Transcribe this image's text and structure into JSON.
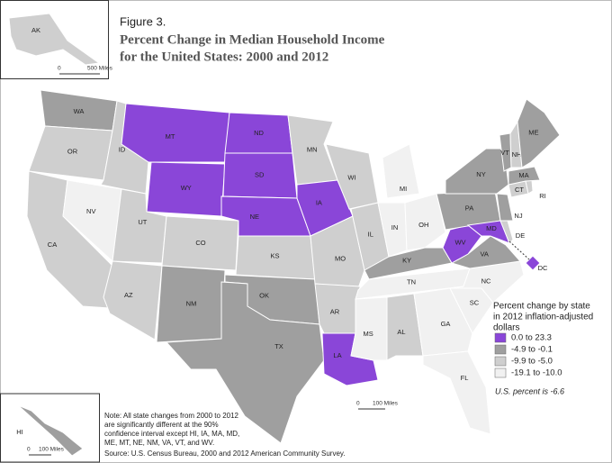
{
  "figure_label": "Figure 3.",
  "title_lines": [
    "Percent Change in Median Household Income",
    "for the United States: 2000 and 2012"
  ],
  "legend": {
    "title_lines": [
      "Percent change by state",
      "in 2012 inflation-adjusted",
      "dollars"
    ],
    "items": [
      {
        "label": "0.0 to 23.3",
        "color": "#8a46d8"
      },
      {
        "label": "-4.9 to -0.1",
        "color": "#9f9f9f"
      },
      {
        "label": "-9.9 to -5.0",
        "color": "#cfcfcf"
      },
      {
        "label": "-19.1 to -10.0",
        "color": "#f1f1f1"
      }
    ],
    "us_note": "U.S. percent is -6.6"
  },
  "scales": {
    "alaska": {
      "zero": "0",
      "label": "500 Miles"
    },
    "main": {
      "zero": "0",
      "label": "100 Miles"
    },
    "hawaii": {
      "zero": "0",
      "label": "100 Miles"
    }
  },
  "note_lines": [
    "Note: All state changes from 2000 to 2012",
    "are significantly different at the 90%",
    "confidence interval except HI, IA, MA, MD,",
    "ME, MT, NE, NM, VA, VT, and WV."
  ],
  "source": "Source: U.S. Census Bureau, 2000 and 2012 American Community Survey.",
  "states": [
    {
      "abbr": "WA",
      "class": 1
    },
    {
      "abbr": "OR",
      "class": 2
    },
    {
      "abbr": "CA",
      "class": 2
    },
    {
      "abbr": "NV",
      "class": 3
    },
    {
      "abbr": "ID",
      "class": 2
    },
    {
      "abbr": "MT",
      "class": 0
    },
    {
      "abbr": "WY",
      "class": 0
    },
    {
      "abbr": "UT",
      "class": 2
    },
    {
      "abbr": "CO",
      "class": 2
    },
    {
      "abbr": "AZ",
      "class": 2
    },
    {
      "abbr": "NM",
      "class": 1
    },
    {
      "abbr": "ND",
      "class": 0
    },
    {
      "abbr": "SD",
      "class": 0
    },
    {
      "abbr": "NE",
      "class": 0
    },
    {
      "abbr": "KS",
      "class": 2
    },
    {
      "abbr": "OK",
      "class": 1
    },
    {
      "abbr": "TX",
      "class": 1
    },
    {
      "abbr": "MN",
      "class": 2
    },
    {
      "abbr": "IA",
      "class": 0
    },
    {
      "abbr": "MO",
      "class": 2
    },
    {
      "abbr": "AR",
      "class": 2
    },
    {
      "abbr": "LA",
      "class": 0
    },
    {
      "abbr": "WI",
      "class": 2
    },
    {
      "abbr": "IL",
      "class": 2
    },
    {
      "abbr": "MI",
      "class": 3
    },
    {
      "abbr": "IN",
      "class": 3
    },
    {
      "abbr": "OH",
      "class": 3
    },
    {
      "abbr": "KY",
      "class": 1
    },
    {
      "abbr": "TN",
      "class": 3
    },
    {
      "abbr": "MS",
      "class": 3
    },
    {
      "abbr": "AL",
      "class": 2
    },
    {
      "abbr": "GA",
      "class": 3
    },
    {
      "abbr": "FL",
      "class": 3
    },
    {
      "abbr": "SC",
      "class": 3
    },
    {
      "abbr": "NC",
      "class": 3
    },
    {
      "abbr": "VA",
      "class": 1
    },
    {
      "abbr": "WV",
      "class": 0
    },
    {
      "abbr": "PA",
      "class": 1
    },
    {
      "abbr": "NY",
      "class": 1
    },
    {
      "abbr": "MD",
      "class": 0
    },
    {
      "abbr": "DE",
      "class": 2
    },
    {
      "abbr": "NJ",
      "class": 1
    },
    {
      "abbr": "CT",
      "class": 2
    },
    {
      "abbr": "RI",
      "class": 2
    },
    {
      "abbr": "MA",
      "class": 1
    },
    {
      "abbr": "VT",
      "class": 1
    },
    {
      "abbr": "NH",
      "class": 2
    },
    {
      "abbr": "ME",
      "class": 1
    },
    {
      "abbr": "DC",
      "class": 0
    },
    {
      "abbr": "AK",
      "class": 2
    },
    {
      "abbr": "HI",
      "class": 1
    }
  ]
}
